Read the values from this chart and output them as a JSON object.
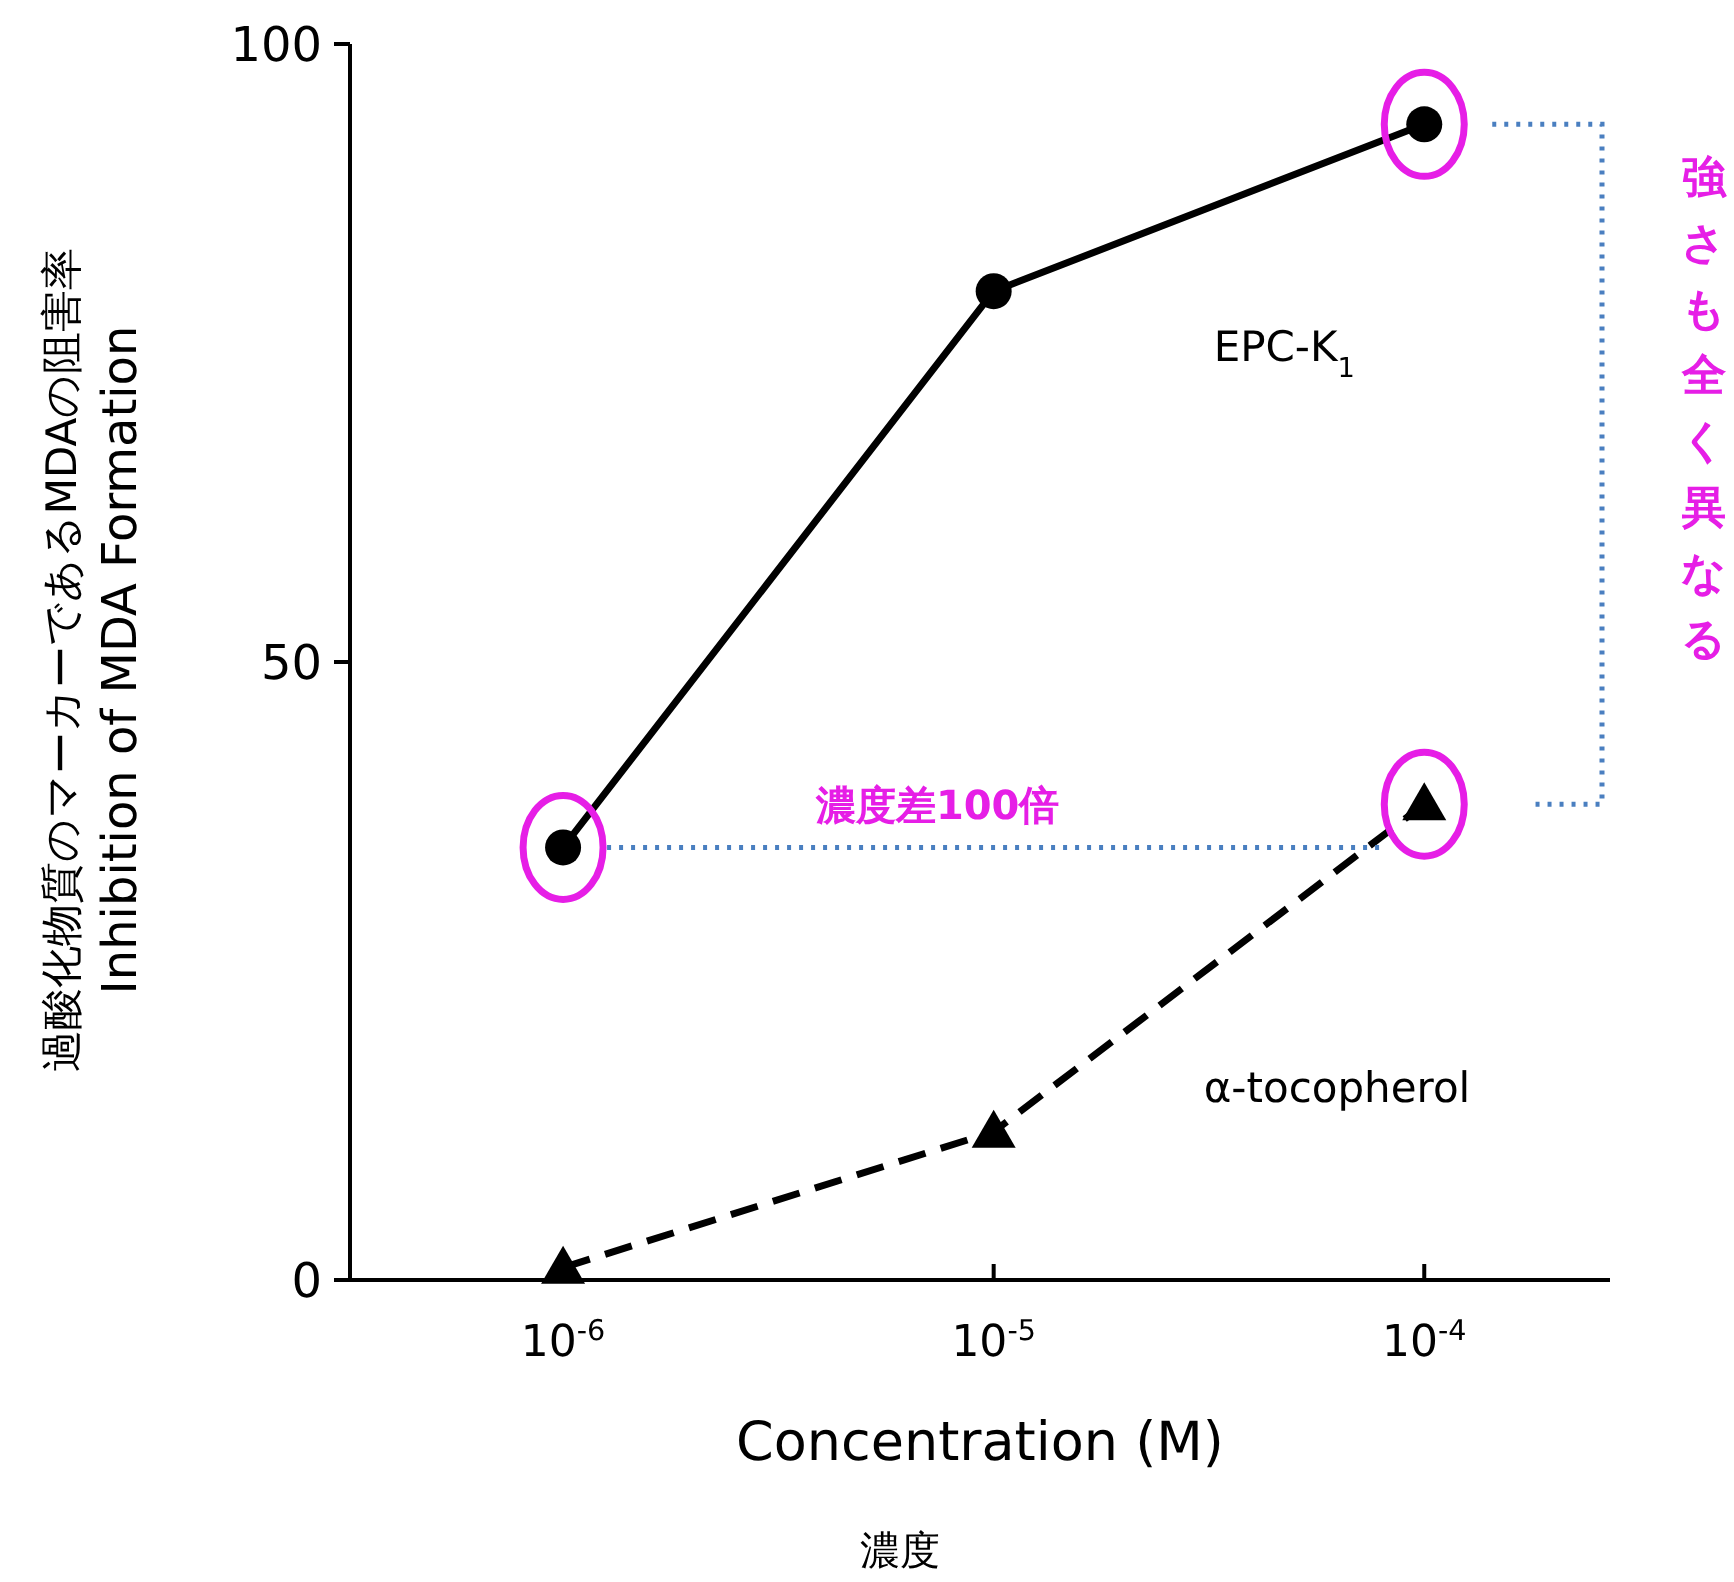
{
  "chart_data": {
    "type": "line",
    "xlabel": "Concentration (M)\n濃度",
    "ylabel": "過酸化物質のマーカーであるMDAの阻害率\nInhibition of MDA Formation",
    "log": "x",
    "x": [
      1e-06,
      1e-05,
      0.0001
    ],
    "xlim": [
      3.2e-07,
      0.00027
    ],
    "xticks": [
      {
        "value": 1e-06,
        "label": "10$^{-6}$"
      },
      {
        "value": 1e-05,
        "label": "10$^{-5}$"
      },
      {
        "value": 0.0001,
        "label": "10$^{-4}$"
      }
    ],
    "ylim": [
      0,
      100
    ],
    "yticks": [
      0,
      50,
      100
    ],
    "grid": false,
    "ref_lines": [
      {
        "axis": "y",
        "value": 35,
        "label": "濃度差100倍",
        "color": "#4a7fc0",
        "line_style": "dotted"
      }
    ],
    "series": [
      {
        "name": "EPC-K$_{1}$",
        "color": "#000000",
        "values": [
          35,
          80,
          93.5
        ],
        "marker": "circle",
        "line_style": "solid"
      },
      {
        "name": "α-tocopherol",
        "color": "#000000",
        "values": [
          1,
          12,
          38.5
        ],
        "marker": "triangle",
        "line_style": "dashed"
      }
    ],
    "annotations": [
      "強さも全く異なる"
    ]
  }
}
